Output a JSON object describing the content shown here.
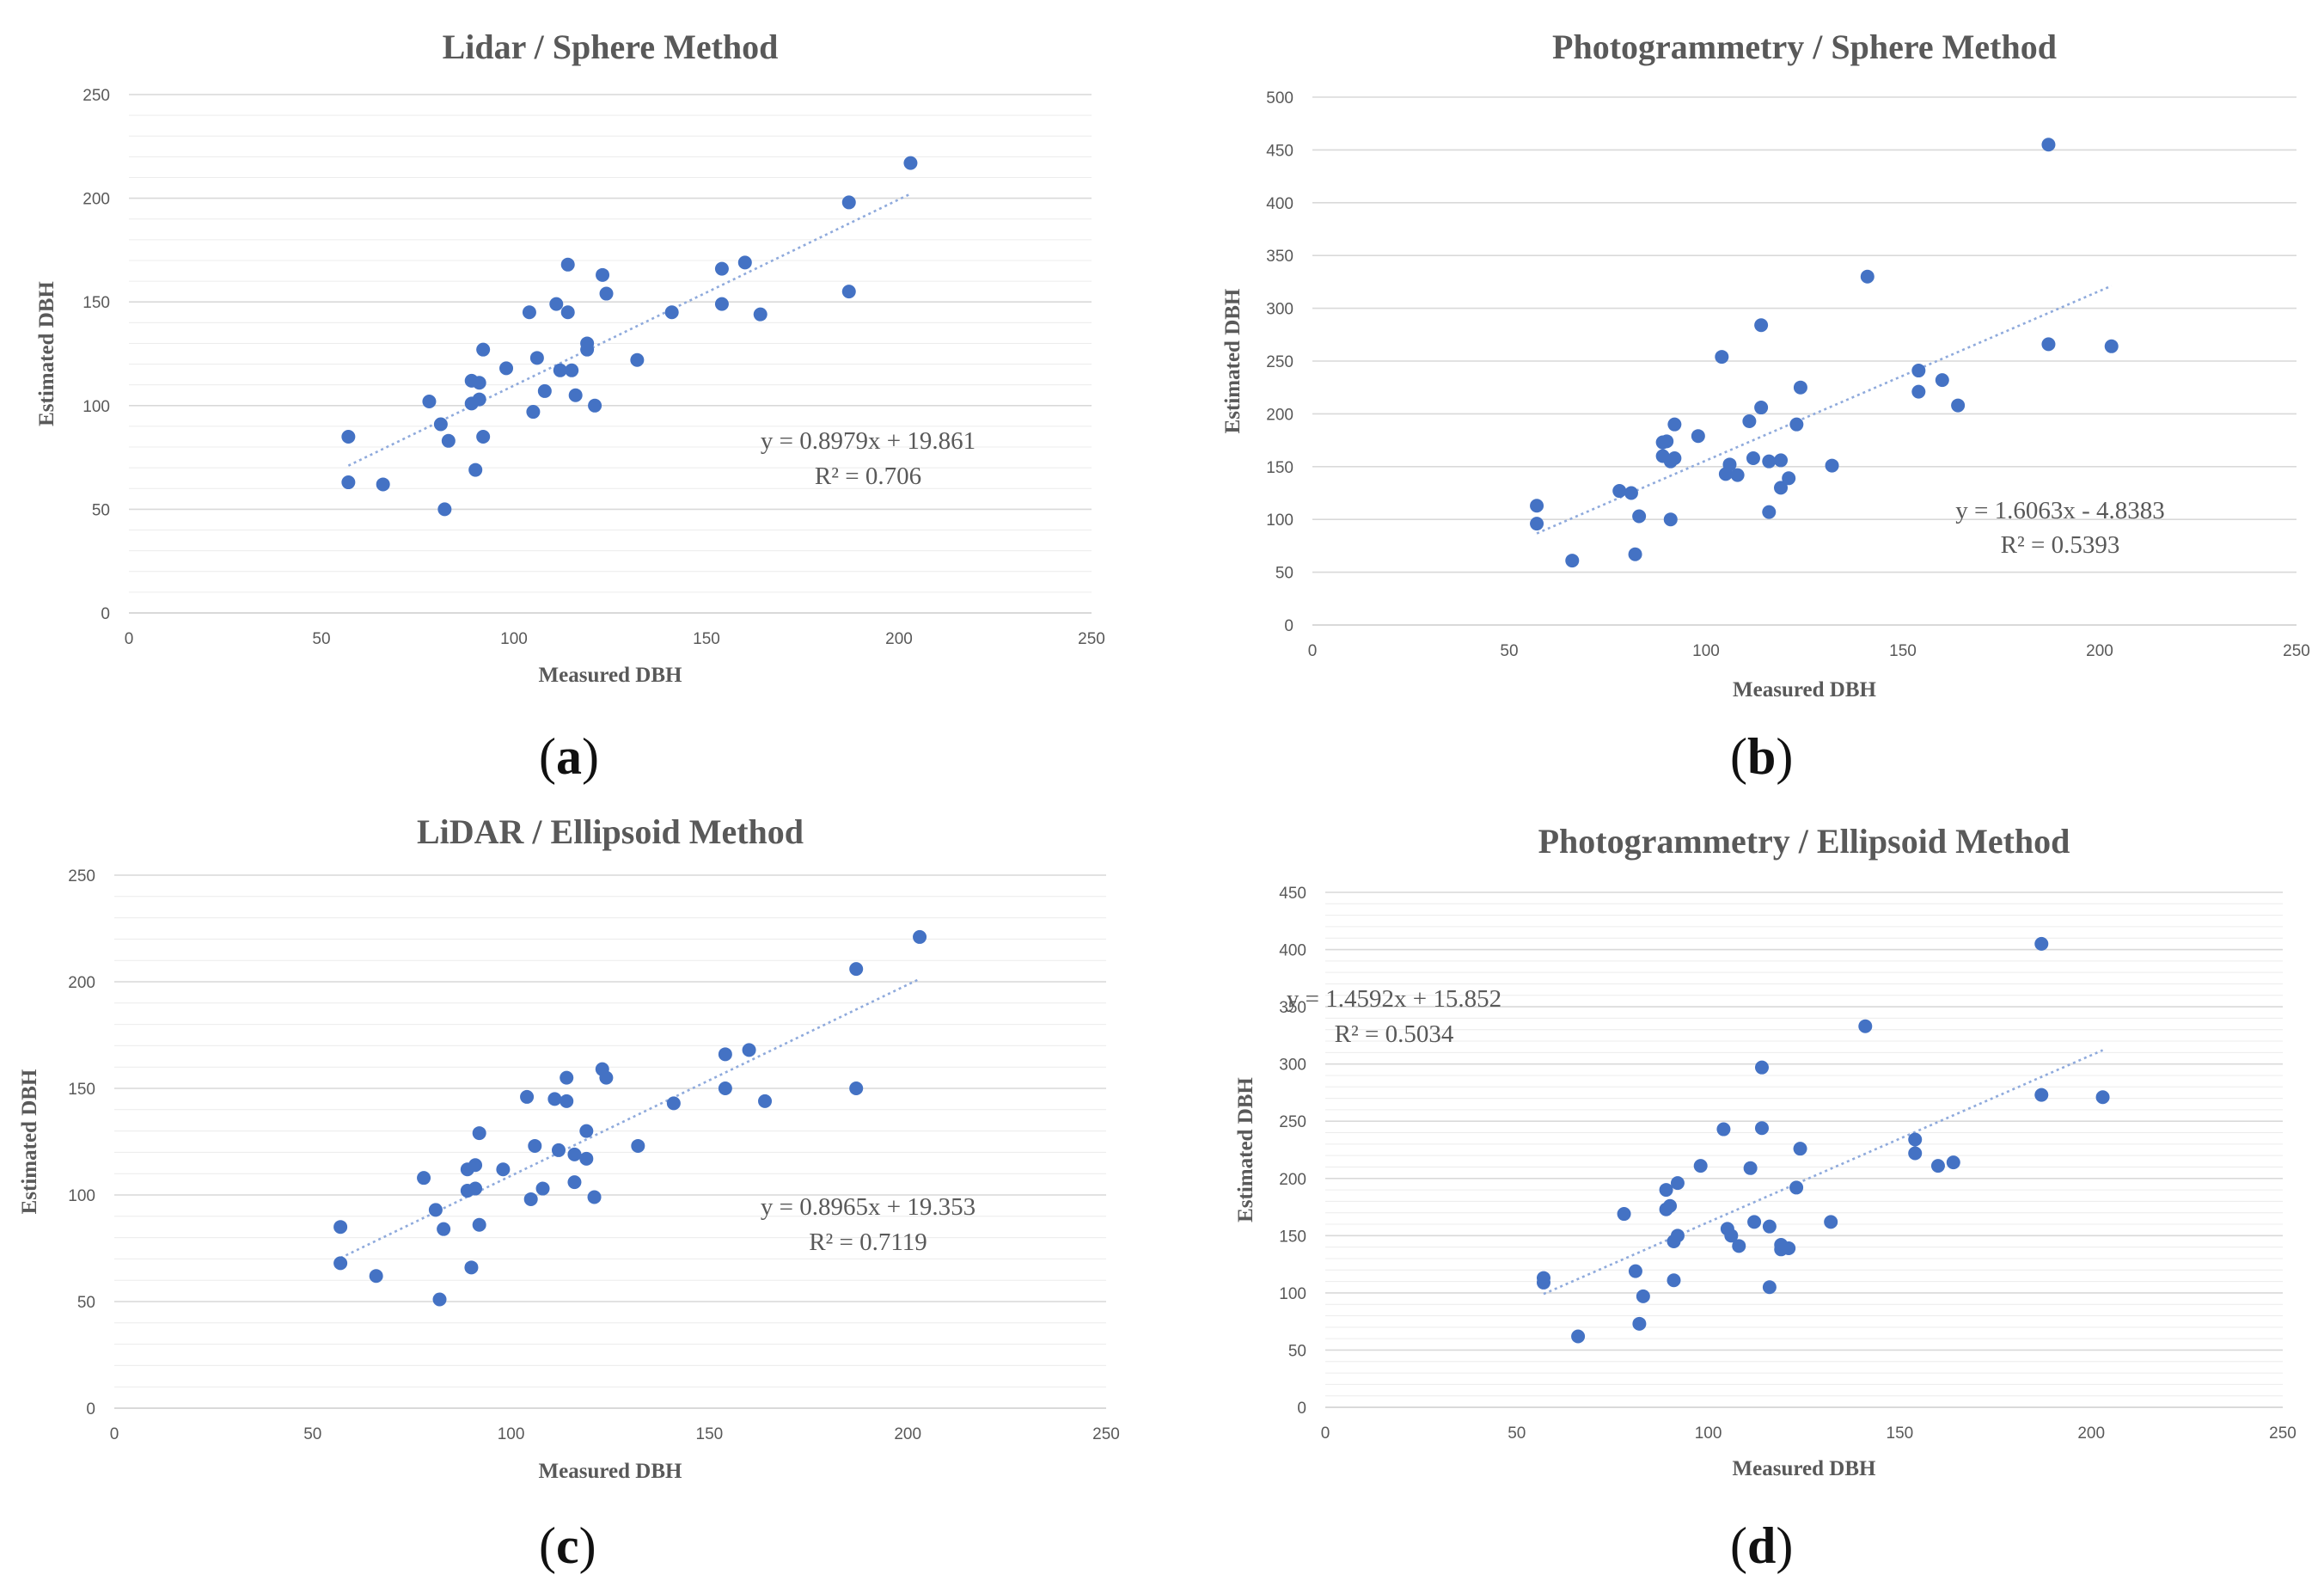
{
  "figure": {
    "panels": [
      {
        "id": "a",
        "caption_open": "(",
        "caption_letter": "a",
        "caption_close": ")"
      },
      {
        "id": "b",
        "caption_open": "(",
        "caption_letter": "b",
        "caption_close": ")"
      },
      {
        "id": "c",
        "caption_open": "(",
        "caption_letter": "c",
        "caption_close": ")"
      },
      {
        "id": "d",
        "caption_open": "(",
        "caption_letter": "d",
        "caption_close": ")"
      }
    ]
  },
  "chart_data": [
    {
      "type": "scatter",
      "title": "Lidar / Sphere Method",
      "xlabel": "Measured DBH",
      "ylabel": "Estimated DBH",
      "xlim": [
        0,
        250
      ],
      "ylim": [
        0,
        250
      ],
      "xticks": [
        "0",
        "50",
        "100",
        "150",
        "200",
        "250"
      ],
      "yticks": [
        "0",
        "50",
        "100",
        "150",
        "200",
        "250"
      ],
      "trendline": {
        "slope": 0.8979,
        "intercept": 19.861,
        "x_range": [
          57,
          203
        ]
      },
      "equation": "y = 0.8979x + 19.861",
      "r2": "R² = 0.706",
      "marker_color": "#4472c4",
      "trend_color": "#8faadc",
      "grid": true,
      "x": [
        57,
        57,
        66,
        78,
        81,
        82,
        83,
        89,
        89,
        90,
        91,
        91,
        92,
        92,
        98,
        104,
        105,
        106,
        108,
        111,
        112,
        114,
        114,
        115,
        116,
        119,
        119,
        121,
        123,
        124,
        132,
        141,
        154,
        154,
        160,
        164,
        187,
        187,
        203
      ],
      "y": [
        85,
        63,
        62,
        102,
        91,
        50,
        83,
        101,
        112,
        69,
        103,
        111,
        127,
        85,
        118,
        145,
        97,
        123,
        107,
        149,
        117,
        145,
        168,
        117,
        105,
        130,
        127,
        100,
        163,
        154,
        122,
        145,
        149,
        166,
        169,
        144,
        198,
        155,
        217
      ]
    },
    {
      "type": "scatter",
      "title": "Photogrammetry / Sphere Method",
      "xlabel": "Measured DBH",
      "ylabel": "Estimated DBH",
      "xlim": [
        0,
        250
      ],
      "ylim": [
        0,
        500
      ],
      "xticks": [
        "0",
        "50",
        "100",
        "150",
        "200",
        "250"
      ],
      "yticks": [
        "0",
        "50",
        "100",
        "150",
        "200",
        "250",
        "300",
        "350",
        "400",
        "450",
        "500"
      ],
      "trendline": {
        "slope": 1.6063,
        "intercept": -4.8383,
        "x_range": [
          57,
          203
        ]
      },
      "equation": "y = 1.6063x - 4.8383",
      "r2": "R² = 0.5393",
      "marker_color": "#4472c4",
      "trend_color": "#8faadc",
      "grid": true,
      "x": [
        57,
        57,
        66,
        78,
        81,
        82,
        83,
        89,
        89,
        90,
        91,
        91,
        92,
        92,
        98,
        104,
        105,
        106,
        108,
        111,
        112,
        114,
        114,
        116,
        116,
        119,
        119,
        121,
        123,
        124,
        132,
        141,
        154,
        154,
        160,
        164,
        187,
        187,
        203
      ],
      "y": [
        113,
        96,
        61,
        127,
        125,
        67,
        103,
        160,
        173,
        174,
        155,
        100,
        190,
        158,
        179,
        254,
        143,
        152,
        142,
        193,
        158,
        284,
        206,
        155,
        107,
        130,
        156,
        139,
        190,
        225,
        151,
        330,
        241,
        221,
        232,
        208,
        455,
        266,
        264
      ]
    },
    {
      "type": "scatter",
      "title": "LiDAR / Ellipsoid Method",
      "xlabel": "Measured DBH",
      "ylabel": "Estimated DBH",
      "xlim": [
        0,
        250
      ],
      "ylim": [
        0,
        250
      ],
      "xticks": [
        "0",
        "50",
        "100",
        "150",
        "200",
        "250"
      ],
      "yticks": [
        "0",
        "50",
        "100",
        "150",
        "200",
        "250"
      ],
      "trendline": {
        "slope": 0.8965,
        "intercept": 19.353,
        "x_range": [
          57,
          203
        ]
      },
      "equation": "y = 0.8965x + 19.353",
      "r2": "R² = 0.7119",
      "marker_color": "#4472c4",
      "trend_color": "#8faadc",
      "grid": true,
      "x": [
        57,
        57,
        66,
        78,
        81,
        82,
        83,
        89,
        89,
        90,
        91,
        91,
        92,
        92,
        98,
        104,
        105,
        106,
        108,
        111,
        112,
        114,
        114,
        116,
        116,
        119,
        119,
        121,
        123,
        124,
        132,
        141,
        154,
        154,
        160,
        164,
        187,
        187,
        203
      ],
      "y": [
        85,
        68,
        62,
        108,
        93,
        51,
        84,
        102,
        112,
        66,
        103,
        114,
        129,
        86,
        112,
        146,
        98,
        123,
        103,
        145,
        121,
        144,
        155,
        119,
        106,
        130,
        117,
        99,
        159,
        155,
        123,
        143,
        150,
        166,
        168,
        144,
        206,
        150,
        221
      ]
    },
    {
      "type": "scatter",
      "title": "Photogrammetry / Ellipsoid Method",
      "xlabel": "Measured DBH",
      "ylabel": "Estimated DBH",
      "xlim": [
        0,
        250
      ],
      "ylim": [
        0,
        450
      ],
      "xticks": [
        "0",
        "50",
        "100",
        "150",
        "200",
        "250"
      ],
      "yticks": [
        "0",
        "50",
        "100",
        "150",
        "200",
        "250",
        "300",
        "350",
        "400",
        "450"
      ],
      "trendline": {
        "slope": 1.4592,
        "intercept": 15.852,
        "x_range": [
          57,
          203
        ]
      },
      "equation": "y = 1.4592x + 15.852",
      "r2": "R² = 0.5034",
      "marker_color": "#4472c4",
      "trend_color": "#8faadc",
      "grid": true,
      "x": [
        57,
        57,
        66,
        78,
        81,
        82,
        83,
        89,
        89,
        90,
        91,
        91,
        92,
        92,
        98,
        104,
        105,
        106,
        108,
        111,
        112,
        114,
        114,
        116,
        116,
        119,
        119,
        121,
        123,
        124,
        132,
        141,
        154,
        154,
        160,
        164,
        187,
        187,
        203
      ],
      "y": [
        113,
        109,
        62,
        169,
        119,
        73,
        97,
        190,
        173,
        176,
        145,
        111,
        196,
        150,
        211,
        243,
        156,
        150,
        141,
        209,
        162,
        297,
        244,
        158,
        105,
        142,
        138,
        139,
        192,
        226,
        162,
        333,
        234,
        222,
        211,
        214,
        405,
        273,
        271
      ]
    }
  ]
}
